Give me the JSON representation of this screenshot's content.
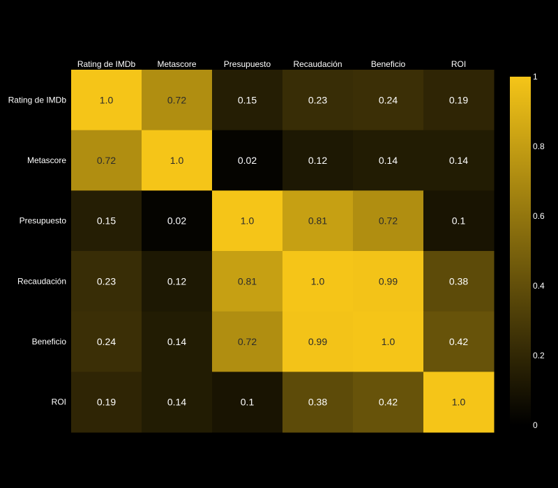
{
  "chart_data": {
    "type": "heatmap",
    "title": "",
    "xlabel": "",
    "ylabel": "",
    "x_labels": [
      "Rating de IMDb",
      "Metascore",
      "Presupuesto",
      "Recaudación",
      "Beneficio",
      "ROI"
    ],
    "y_labels": [
      "Rating de IMDb",
      "Metascore",
      "Presupuesto",
      "Recaudación",
      "Beneficio",
      "ROI"
    ],
    "values": [
      [
        1.0,
        0.72,
        0.15,
        0.23,
        0.24,
        0.19
      ],
      [
        0.72,
        1.0,
        0.02,
        0.12,
        0.14,
        0.14
      ],
      [
        0.15,
        0.02,
        1.0,
        0.81,
        0.72,
        0.1
      ],
      [
        0.23,
        0.12,
        0.81,
        1.0,
        0.99,
        0.38
      ],
      [
        0.24,
        0.14,
        0.72,
        0.99,
        1.0,
        0.42
      ],
      [
        0.19,
        0.14,
        0.1,
        0.38,
        0.42,
        1.0
      ]
    ],
    "cell_text": [
      [
        "1.0",
        "0.72",
        "0.15",
        "0.23",
        "0.24",
        "0.19"
      ],
      [
        "0.72",
        "1.0",
        "0.02",
        "0.12",
        "0.14",
        "0.14"
      ],
      [
        "0.15",
        "0.02",
        "1.0",
        "0.81",
        "0.72",
        "0.1"
      ],
      [
        "0.23",
        "0.12",
        "0.81",
        "1.0",
        "0.99",
        "0.38"
      ],
      [
        "0.24",
        "0.14",
        "0.72",
        "0.99",
        "1.0",
        "0.42"
      ],
      [
        "0.19",
        "0.14",
        "0.1",
        "0.38",
        "0.42",
        "1.0"
      ]
    ],
    "colorbar": {
      "range": [
        0,
        1
      ],
      "ticks": [
        0,
        0.2,
        0.4,
        0.6,
        0.8,
        1
      ],
      "tick_labels": [
        "0",
        "0.2",
        "0.4",
        "0.6",
        "0.8",
        "1"
      ]
    },
    "colorscale": [
      "#000000",
      "#f5c518"
    ],
    "x_axis_position": "top",
    "legend": "colorbar-right",
    "grid": false
  }
}
